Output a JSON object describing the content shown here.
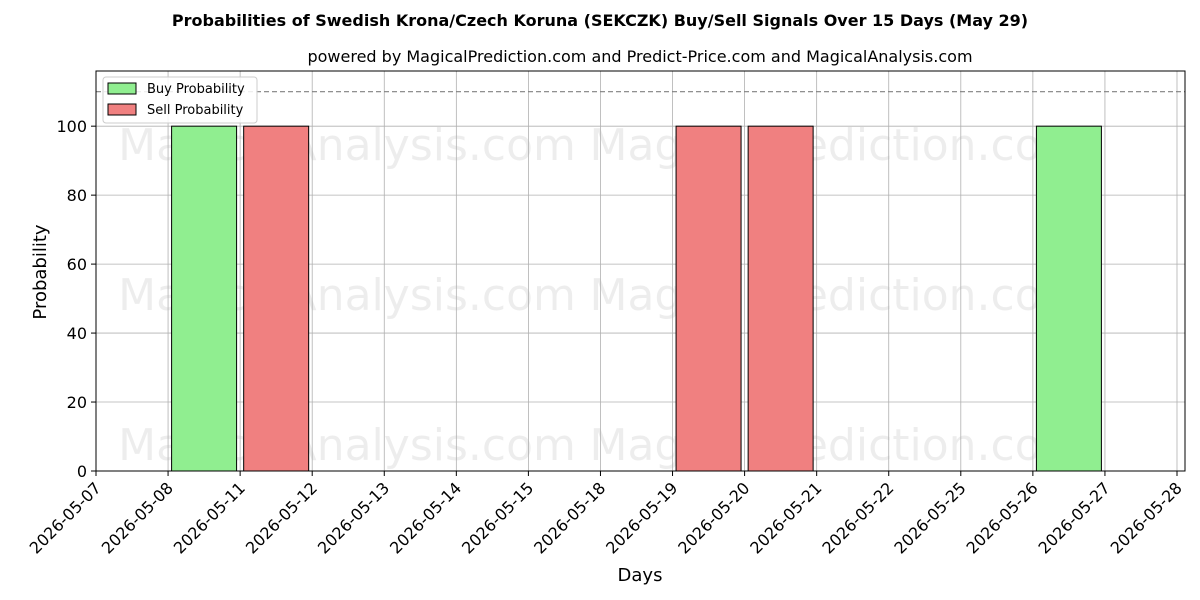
{
  "chart_data": {
    "type": "bar",
    "title": "Probabilities of Swedish Krona/Czech Koruna (SEKCZK) Buy/Sell Signals Over 15 Days (May 29)",
    "subtitle": "powered by MagicalPrediction.com and Predict-Price.com and MagicalAnalysis.com",
    "xlabel": "Days",
    "ylabel": "Probability",
    "categories": [
      "2026-05-07",
      "2026-05-08",
      "2026-05-11",
      "2026-05-12",
      "2026-05-13",
      "2026-05-14",
      "2026-05-15",
      "2026-05-18",
      "2026-05-19",
      "2026-05-20",
      "2026-05-21",
      "2026-05-22",
      "2026-05-25",
      "2026-05-26",
      "2026-05-27",
      "2026-05-28"
    ],
    "bars": [
      {
        "series": "buy",
        "category": "2026-05-08",
        "value": 100
      },
      {
        "series": "sell",
        "category": "2026-05-11",
        "value": 100
      },
      {
        "series": "sell",
        "category": "2026-05-19",
        "value": 100
      },
      {
        "series": "sell",
        "category": "2026-05-20",
        "value": 100
      },
      {
        "series": "buy",
        "category": "2026-05-26",
        "value": 100
      }
    ],
    "series": [
      {
        "name": "Buy Probability",
        "key": "buy",
        "color": "#90ee90"
      },
      {
        "name": "Sell Probability",
        "key": "sell",
        "color": "#f08080"
      }
    ],
    "ylim": [
      0,
      116
    ],
    "yticks": [
      0,
      20,
      40,
      60,
      80,
      100
    ],
    "reference_line": 110,
    "grid": true,
    "legend_position": "top-left",
    "watermarks": [
      "MagicalAnalysis.com",
      "MagicalPrediction.com"
    ]
  }
}
